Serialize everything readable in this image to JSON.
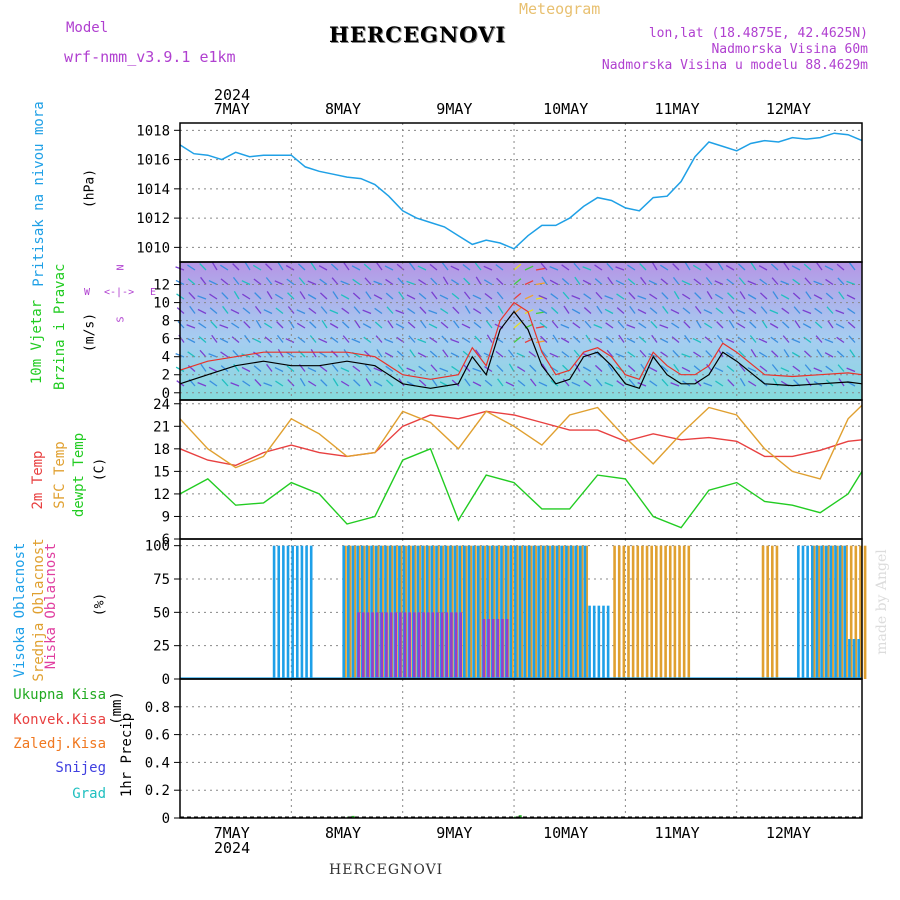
{
  "header": {
    "model_label": "Model",
    "model_name": "wrf-nmm_v3.9.1  e1km",
    "title": "HERCEGNOVI",
    "meteogram_label": "Meteogram",
    "lonlat": "lon,lat (18.4875E, 42.4625N)",
    "elevation": "Nadmorska Visina 60m",
    "model_elevation": "Nadmorska Visina u modelu 88.4629m"
  },
  "footer": {
    "station": "HERCEGNOVI",
    "credit": "made by Angel"
  },
  "colors": {
    "pressure": "#1fa0e6",
    "wind_speed": "#000000",
    "wind_gust": "#e8322a",
    "temp2m": "#e84040",
    "sfc_temp": "#e0a030",
    "dewpoint": "#22cc22",
    "cloud_high": "#1ea0e8",
    "cloud_mid": "#e0a030",
    "cloud_low": "#9040d0",
    "precip_total": "#22aa22",
    "precip_conv": "#e84040",
    "precip_frozen": "#f07820",
    "snow": "#4040e0",
    "hail": "#20c0c0",
    "label_violet": "#b040d0"
  },
  "chart_data": [
    {
      "id": "pressure",
      "type": "line",
      "ylabel_a": "Pritisak na nivou mora",
      "ylabel_b": "(hPa)",
      "ylim": [
        1009,
        1018.5
      ],
      "yticks": [
        1010,
        1012,
        1014,
        1016,
        1018
      ],
      "grid": true,
      "x": [
        0,
        3,
        6,
        9,
        12,
        15,
        18,
        21,
        24,
        27,
        30,
        33,
        36,
        39,
        42,
        45,
        48,
        51,
        54,
        57,
        60,
        63,
        66,
        69,
        72,
        75,
        78,
        81,
        84,
        87,
        90,
        93,
        96,
        99,
        102,
        105,
        108,
        111,
        114,
        117,
        120,
        123,
        126,
        129,
        132,
        135,
        138,
        141,
        144,
        147
      ],
      "values": [
        1017,
        1016.4,
        1016.3,
        1016,
        1016.5,
        1016.2,
        1016.3,
        1016.3,
        1016.3,
        1015.5,
        1015.2,
        1015,
        1014.8,
        1014.7,
        1014.3,
        1013.5,
        1012.5,
        1012,
        1011.7,
        1011.4,
        1010.8,
        1010.2,
        1010.5,
        1010.3,
        1009.9,
        1010.8,
        1011.5,
        1011.5,
        1012,
        1012.8,
        1013.4,
        1013.2,
        1012.7,
        1012.5,
        1013.4,
        1013.5,
        1014.5,
        1016.2,
        1017.2,
        1016.9,
        1016.6,
        1017.1,
        1017.3,
        1017.2,
        1017.5,
        1017.4,
        1017.5,
        1017.8,
        1017.7,
        1017.3
      ]
    },
    {
      "id": "wind",
      "type": "line",
      "ylabel_a": "10m Vjetar",
      "ylabel_b": "Brzina i Pravac",
      "ylabel_c": "(m/s)",
      "compass": [
        "N",
        "W",
        "E",
        "S"
      ],
      "ylim": [
        -0.8,
        14.5
      ],
      "yticks": [
        0,
        2,
        4,
        6,
        8,
        10,
        12
      ],
      "grid": true,
      "series": [
        {
          "key": "wind_speed",
          "x": [
            0,
            6,
            12,
            18,
            24,
            30,
            36,
            42,
            48,
            54,
            60,
            63,
            66,
            69,
            72,
            75,
            78,
            81,
            84,
            87,
            90,
            93,
            96,
            99,
            102,
            105,
            108,
            111,
            114,
            117,
            120,
            126,
            132,
            138,
            144,
            147
          ],
          "values": [
            1,
            2,
            3,
            3.5,
            3,
            3,
            3.5,
            3,
            1,
            0.5,
            1,
            4,
            2,
            7,
            9,
            7,
            3,
            1,
            1.5,
            4,
            4.5,
            3,
            1,
            0.5,
            4,
            2,
            1,
            1,
            2,
            4.5,
            3.5,
            1,
            0.8,
            1,
            1.2,
            1
          ]
        },
        {
          "key": "wind_gust",
          "x": [
            0,
            6,
            12,
            18,
            24,
            30,
            36,
            42,
            48,
            54,
            60,
            63,
            66,
            69,
            72,
            75,
            78,
            81,
            84,
            87,
            90,
            93,
            96,
            99,
            102,
            105,
            108,
            111,
            114,
            117,
            120,
            126,
            132,
            138,
            144,
            147
          ],
          "values": [
            2.5,
            3.5,
            4,
            4.5,
            4.5,
            4.5,
            4.5,
            4,
            2,
            1.5,
            2,
            5,
            3,
            8,
            10,
            9,
            4.5,
            2,
            2.5,
            4.5,
            5,
            4,
            2,
            1.5,
            4.5,
            3,
            2,
            2,
            3,
            5.5,
            4.5,
            2,
            1.8,
            2,
            2.2,
            2
          ]
        }
      ]
    },
    {
      "id": "temperature",
      "type": "line",
      "ylabel_a": "2m Temp",
      "ylabel_b": "SFC Temp",
      "ylabel_c": "dewpt Temp",
      "ylabel_d": "(C)",
      "ylim": [
        6,
        24.5
      ],
      "yticks": [
        6,
        9,
        12,
        15,
        18,
        21,
        24
      ],
      "grid": true,
      "series": [
        {
          "key": "temp2m",
          "x": [
            0,
            6,
            12,
            18,
            24,
            30,
            36,
            42,
            48,
            54,
            60,
            66,
            72,
            78,
            84,
            90,
            96,
            102,
            108,
            114,
            120,
            126,
            132,
            138,
            144,
            147
          ],
          "values": [
            18,
            16.5,
            15.8,
            17.5,
            18.5,
            17.5,
            17,
            17.5,
            21,
            22.5,
            22,
            23,
            22.5,
            21.5,
            20.5,
            20.5,
            19,
            20,
            19.2,
            19.5,
            19,
            17,
            17,
            17.8,
            19,
            19.2
          ]
        },
        {
          "key": "sfc_temp",
          "x": [
            0,
            6,
            12,
            18,
            24,
            30,
            36,
            42,
            48,
            54,
            60,
            66,
            72,
            78,
            84,
            90,
            96,
            102,
            108,
            114,
            120,
            126,
            132,
            138,
            144,
            147
          ],
          "values": [
            22,
            18,
            15.5,
            17,
            22,
            20,
            17,
            17.5,
            23,
            21.5,
            18,
            23,
            21,
            18.5,
            22.5,
            23.5,
            19.5,
            16,
            20,
            23.5,
            22.5,
            18,
            15,
            14,
            22,
            23.8
          ]
        },
        {
          "key": "dewpoint",
          "x": [
            0,
            6,
            12,
            18,
            24,
            30,
            36,
            42,
            48,
            54,
            60,
            66,
            72,
            78,
            84,
            90,
            96,
            102,
            108,
            114,
            120,
            126,
            132,
            138,
            144,
            147
          ],
          "values": [
            12,
            14,
            10.5,
            10.8,
            13.5,
            12,
            8,
            9,
            16.5,
            18,
            8.5,
            14.5,
            13.5,
            10,
            10,
            14.5,
            14,
            9,
            7.5,
            12.5,
            13.5,
            11,
            10.5,
            9.5,
            12,
            15
          ]
        }
      ]
    },
    {
      "id": "clouds",
      "type": "bar",
      "ylabel_a": "Visoka Oblacnost",
      "ylabel_b": "Srednja Oblacnost",
      "ylabel_c": "Niska Oblacnost",
      "ylabel_d": "(%)",
      "ylim": [
        0,
        105
      ],
      "yticks": [
        0,
        25,
        50,
        75,
        100
      ],
      "grid": true,
      "series": [
        {
          "key": "cloud_high",
          "ranges": [
            [
              20,
              28,
              100
            ],
            [
              35,
              87,
              100
            ],
            [
              88,
              92,
              55
            ],
            [
              133,
              136,
              100
            ],
            [
              137,
              143,
              100
            ],
            [
              144,
              146,
              30
            ]
          ]
        },
        {
          "key": "cloud_mid",
          "ranges": [
            [
              35,
              87,
              100
            ],
            [
              93,
              106,
              100
            ],
            [
              107,
              109,
              100
            ],
            [
              125,
              128,
              100
            ],
            [
              136,
              147,
              100
            ]
          ]
        },
        {
          "key": "cloud_low",
          "ranges": [
            [
              38,
              60,
              50
            ],
            [
              65,
              70,
              45
            ]
          ]
        }
      ]
    },
    {
      "id": "precip",
      "type": "bar",
      "ylabel_a": "1hr Precip",
      "ylabel_b": "(mm)",
      "legend": [
        "Ukupna Kisa",
        "Konvek.Kisa",
        "Zaledj.Kisa",
        "Snijeg",
        "Grad"
      ],
      "ylim": [
        0,
        1.0
      ],
      "yticks": [
        0,
        0.2,
        0.4,
        0.6,
        0.8
      ],
      "grid": true,
      "series": [
        {
          "key": "precip_total",
          "x": [
            36,
            37,
            72,
            73
          ],
          "values": [
            0.01,
            0.015,
            0.01,
            0.02
          ]
        }
      ]
    }
  ],
  "time_axis": {
    "year_top": "2024",
    "year_bottom": "2024",
    "days": [
      "7MAY",
      "8MAY",
      "9MAY",
      "10MAY",
      "11MAY",
      "12MAY"
    ],
    "start_hour_offset": 0
  }
}
